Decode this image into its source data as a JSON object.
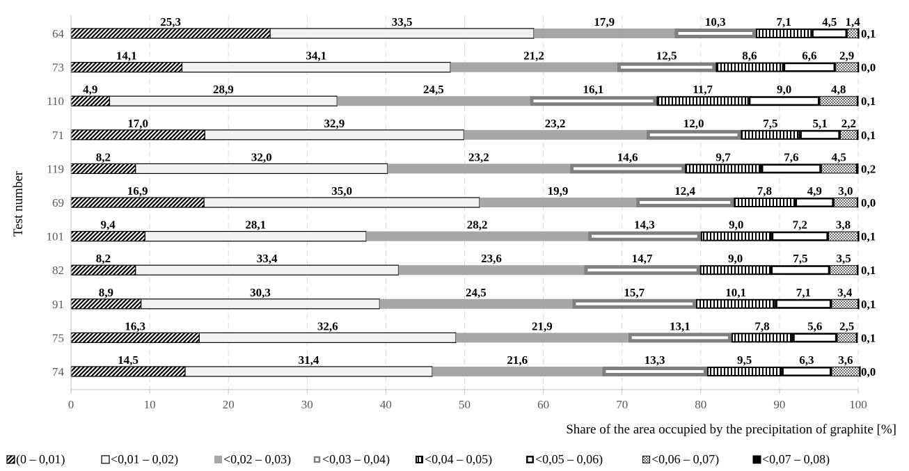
{
  "chart_data": {
    "type": "bar",
    "orientation": "horizontal",
    "stacked": true,
    "title": "",
    "xlabel": "Share of the area occupied by the precipitation of graphite [%]",
    "ylabel": "Test number",
    "xlim": [
      0,
      100
    ],
    "x_ticks": [
      "0",
      "10",
      "20",
      "30",
      "40",
      "50",
      "60",
      "70",
      "80",
      "90",
      "100"
    ],
    "grid": "vertical dashed",
    "legend_position": "bottom",
    "categories": [
      "64",
      "73",
      "110",
      "71",
      "119",
      "69",
      "101",
      "82",
      "91",
      "75",
      "74"
    ],
    "series": [
      {
        "name": "(0 – 0,01)",
        "style": "diagonal-hatch",
        "color": "#000000",
        "values": [
          25.3,
          14.1,
          4.9,
          17.0,
          8.2,
          16.9,
          9.4,
          8.2,
          8.9,
          16.3,
          14.5
        ],
        "labels": [
          "25,3",
          "14,1",
          "4,9",
          "17,0",
          "8,2",
          "16,9",
          "9,4",
          "8,2",
          "8,9",
          "16,3",
          "14,5"
        ]
      },
      {
        "name": "<0,01 – 0,02)",
        "style": "light-fill",
        "color": "#f2f2f2",
        "values": [
          33.5,
          34.1,
          28.9,
          32.9,
          32.0,
          35.0,
          28.1,
          33.4,
          30.3,
          32.6,
          31.4
        ],
        "labels": [
          "33,5",
          "34,1",
          "28,9",
          "32,9",
          "32,0",
          "35,0",
          "28,1",
          "33,4",
          "30,3",
          "32,6",
          "31,4"
        ]
      },
      {
        "name": "<0,02 – 0,03)",
        "style": "gray-fill",
        "color": "#a6a6a6",
        "values": [
          17.9,
          21.2,
          24.5,
          23.2,
          23.2,
          19.9,
          28.2,
          23.6,
          24.5,
          21.9,
          21.6
        ],
        "labels": [
          "17,9",
          "21,2",
          "24,5",
          "23,2",
          "23,2",
          "19,9",
          "28,2",
          "23,6",
          "24,5",
          "21,9",
          "21,6"
        ]
      },
      {
        "name": "<0,03 – 0,04)",
        "style": "thick-gray-border",
        "color": "#7f7f7f",
        "values": [
          10.3,
          12.5,
          16.1,
          12.0,
          14.6,
          12.4,
          14.3,
          14.7,
          15.7,
          13.1,
          13.3
        ],
        "labels": [
          "10,3",
          "12,5",
          "16,1",
          "12,0",
          "14,6",
          "12,4",
          "14,3",
          "14,7",
          "15,7",
          "13,1",
          "13,3"
        ]
      },
      {
        "name": "<0,04 – 0,05)",
        "style": "vertical-stripes",
        "color": "#000000",
        "values": [
          7.1,
          8.6,
          11.7,
          7.5,
          9.7,
          7.8,
          9.0,
          9.0,
          10.1,
          7.8,
          9.5
        ],
        "labels": [
          "7,1",
          "8,6",
          "11,7",
          "7,5",
          "9,7",
          "7,8",
          "9,0",
          "9,0",
          "10,1",
          "7,8",
          "9,5"
        ]
      },
      {
        "name": "<0,05 – 0,06)",
        "style": "thick-black-border",
        "color": "#000000",
        "values": [
          4.5,
          6.6,
          9.0,
          5.1,
          7.6,
          4.9,
          7.2,
          7.5,
          7.1,
          5.6,
          6.3
        ],
        "labels": [
          "4,5",
          "6,6",
          "9,0",
          "5,1",
          "7,6",
          "4,9",
          "7,2",
          "7,5",
          "7,1",
          "5,6",
          "6,3"
        ]
      },
      {
        "name": "<0,06 – 0,07)",
        "style": "checker",
        "color": "#7f7f7f",
        "values": [
          1.4,
          2.9,
          4.8,
          2.2,
          4.5,
          3.0,
          3.8,
          3.5,
          3.4,
          2.5,
          3.6
        ],
        "labels": [
          "1,4",
          "2,9",
          "4,8",
          "2,2",
          "4,5",
          "3,0",
          "3,8",
          "3,5",
          "3,4",
          "2,5",
          "3,6"
        ]
      },
      {
        "name": "<0,07 – 0,08)",
        "style": "black-fill",
        "color": "#000000",
        "values": [
          0.1,
          0.0,
          0.1,
          0.1,
          0.2,
          0.0,
          0.1,
          0.1,
          0.1,
          0.1,
          0.0
        ],
        "labels": [
          "0,1",
          "0,0",
          "0,1",
          "0,1",
          "0,2",
          "0,0",
          "0,1",
          "0,1",
          "0,1",
          "0,1",
          "0,0"
        ]
      }
    ]
  }
}
